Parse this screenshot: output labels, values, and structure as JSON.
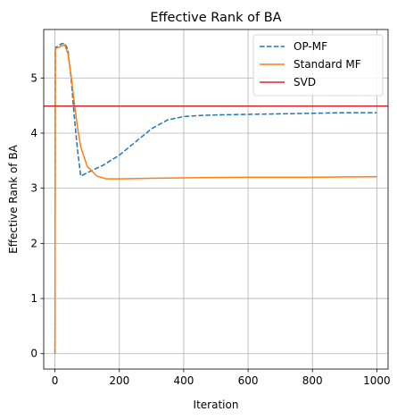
{
  "chart_data": {
    "type": "line",
    "title": "Effective Rank of BA",
    "xlabel": "Iteration",
    "ylabel": "Effective Rank of BA",
    "xlim": [
      -35,
      1035
    ],
    "ylim": [
      -0.28,
      5.88
    ],
    "xticks": [
      0,
      200,
      400,
      600,
      800,
      1000
    ],
    "yticks": [
      0,
      1,
      2,
      3,
      4,
      5
    ],
    "grid": true,
    "legend_position": "top-right",
    "series": [
      {
        "name": "OP-MF",
        "style": "dashed",
        "color": "#1f77b4",
        "x": [
          0,
          1,
          3,
          10,
          20,
          30,
          40,
          50,
          60,
          70,
          80,
          100,
          150,
          200,
          250,
          300,
          350,
          400,
          450,
          500,
          600,
          700,
          800,
          900,
          1000
        ],
        "y": [
          0,
          5.5,
          5.56,
          5.58,
          5.62,
          5.63,
          5.52,
          5.0,
          4.3,
          3.7,
          3.22,
          3.28,
          3.42,
          3.6,
          3.84,
          4.08,
          4.24,
          4.3,
          4.32,
          4.33,
          4.34,
          4.35,
          4.36,
          4.37,
          4.37
        ]
      },
      {
        "name": "Standard MF",
        "style": "solid",
        "color": "#ff7f0e",
        "x": [
          0,
          1,
          3,
          10,
          20,
          30,
          40,
          50,
          60,
          70,
          80,
          100,
          130,
          160,
          200,
          300,
          400,
          600,
          800,
          1000
        ],
        "y": [
          0,
          5.5,
          5.54,
          5.55,
          5.58,
          5.6,
          5.45,
          5.05,
          4.55,
          4.1,
          3.75,
          3.4,
          3.22,
          3.17,
          3.17,
          3.18,
          3.19,
          3.2,
          3.2,
          3.21
        ]
      },
      {
        "name": "SVD",
        "style": "hline",
        "color": "#d62728",
        "y": 4.49
      }
    ]
  }
}
